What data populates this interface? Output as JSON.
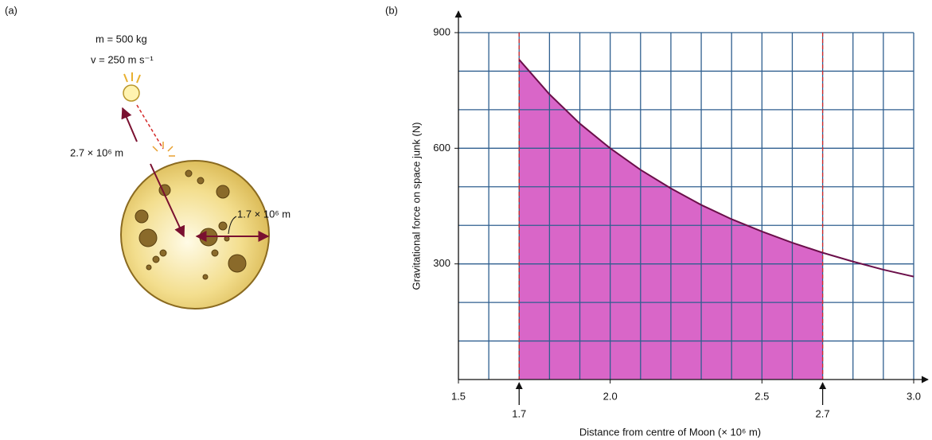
{
  "panel_a": {
    "label": "(a)",
    "mass_label": "m = 500 kg",
    "velocity_label": "v = 250 m s⁻¹",
    "distance_label": "2.7 × 10⁶ m",
    "radius_label": "1.7 × 10⁶ m"
  },
  "chart_data": {
    "type": "line",
    "panel_label": "(b)",
    "xlabel": "Distance from centre of Moon (× 10⁶ m)",
    "ylabel": "Gravitational force on space junk (N)",
    "x": [
      1.7,
      1.8,
      1.9,
      2.0,
      2.1,
      2.2,
      2.3,
      2.4,
      2.5,
      2.6,
      2.7,
      2.8,
      2.9,
      3.0
    ],
    "series": [
      {
        "color": "#6b0f4a",
        "values": [
          830,
          740,
          664,
          600,
          544,
          496,
          453,
          416,
          384,
          355,
          329,
          306,
          285,
          267
        ]
      }
    ],
    "shaded_range": [
      1.7,
      2.7
    ],
    "shade_color": "#d966c8",
    "range_line_color": "#d42a2a",
    "markers": [
      1.7,
      2.7
    ],
    "xlim": [
      1.5,
      3.0
    ],
    "ylim": [
      0,
      900
    ],
    "xticks": [
      1.5,
      {
        "value": 2,
        "label": "2.0"
      },
      2.5,
      {
        "value": 3,
        "label": "3.0"
      }
    ],
    "yticks": [
      300,
      600,
      900
    ],
    "grid": true,
    "grid_color": "#2f5f8f",
    "xgrid": [
      1.6,
      1.7,
      1.8,
      1.9,
      2.0,
      2.1,
      2.2,
      2.3,
      2.4,
      2.5,
      2.6,
      2.7,
      2.8,
      2.9,
      3.0
    ],
    "ygrid": [
      100,
      200,
      300,
      400,
      500,
      600,
      700,
      800,
      900
    ]
  }
}
